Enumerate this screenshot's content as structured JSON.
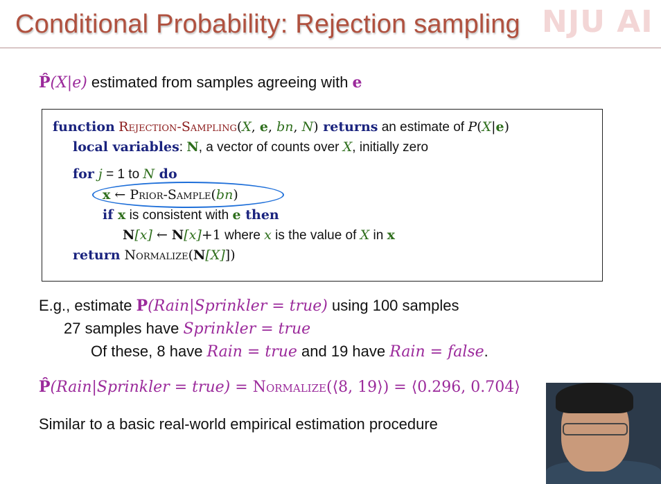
{
  "slide": {
    "title": "Conditional Probability: Rejection sampling",
    "logo": "NJU AI"
  },
  "intro": {
    "P": "P̂",
    "expr": "(X|e)",
    "text": " estimated from samples agreeing with ",
    "e": "e"
  },
  "algorithm": {
    "l1": {
      "kw": "function",
      "name": "Rejection-Sampling",
      "args_open": "(",
      "X": "X",
      "c1": ", ",
      "e": "e",
      "c2": ", ",
      "bn": "bn",
      "c3": ", ",
      "N": "N",
      "args_close": ")",
      "returns": " returns",
      "desc": " an estimate of ",
      "P": "P",
      "pexpr_open": "(",
      "pX": "X",
      "bar": "|",
      "pe": "e",
      "pexpr_close": ")"
    },
    "l2": {
      "kw": "local variables",
      "colon": ": ",
      "N": "N",
      "text": ", a vector of counts over ",
      "X": "X",
      "text2": ", initially zero"
    },
    "l3": {
      "kw": "for",
      "j": " j",
      "eq": " = 1 to ",
      "N": "N",
      "do": " do"
    },
    "l4": {
      "x": "x",
      "arrow": " ← ",
      "fn": "Prior-Sample",
      "open": "(",
      "bn": "bn",
      "close": ")"
    },
    "l5": {
      "kw": "if",
      "x": " x",
      "text": " is consistent with ",
      "e": "e",
      "then": " then"
    },
    "l6": {
      "N1": "N",
      "x1": "[x]",
      "arrow": " ← ",
      "N2": "N",
      "x2": "[x]",
      "plus": "+1",
      "text": " where ",
      "x3": "x",
      "text2": " is the value of ",
      "X": "X",
      "text3": " in ",
      "xb": "x"
    },
    "l7": {
      "kw": "return",
      "fn": " Normalize",
      "open": "(",
      "N": "N",
      "X": "[X]",
      "close": "])"
    }
  },
  "example": {
    "l1": {
      "pre": "E.g., estimate ",
      "P": "P",
      "expr": "(Rain|Sprinkler = true)",
      "post": " using 100 samples"
    },
    "l2": {
      "pre": "27 samples have ",
      "expr": "Sprinkler = true"
    },
    "l3": {
      "pre": "Of these, 8 have ",
      "e1": "Rain = true",
      "mid": " and 19 have ",
      "e2": "Rain = false",
      "post": "."
    },
    "l4": {
      "P": "P̂",
      "expr": "(Rain|Sprinkler = true)",
      "eq1": " = ",
      "fn": "Normalize",
      "args": "(⟨8, 19⟩)",
      "eq2": " = ",
      "result": "⟨0.296, 0.704⟩"
    },
    "l5": {
      "text": "Similar to a basic real-world empirical estimation procedure"
    }
  },
  "colors": {
    "title": "#b0513f",
    "math_purple": "#9b2a9b",
    "keyword": "#1a237e",
    "var_green": "#2f6f1d",
    "fn_red": "#8b1a1a",
    "annotation": "#1e6fd9"
  }
}
